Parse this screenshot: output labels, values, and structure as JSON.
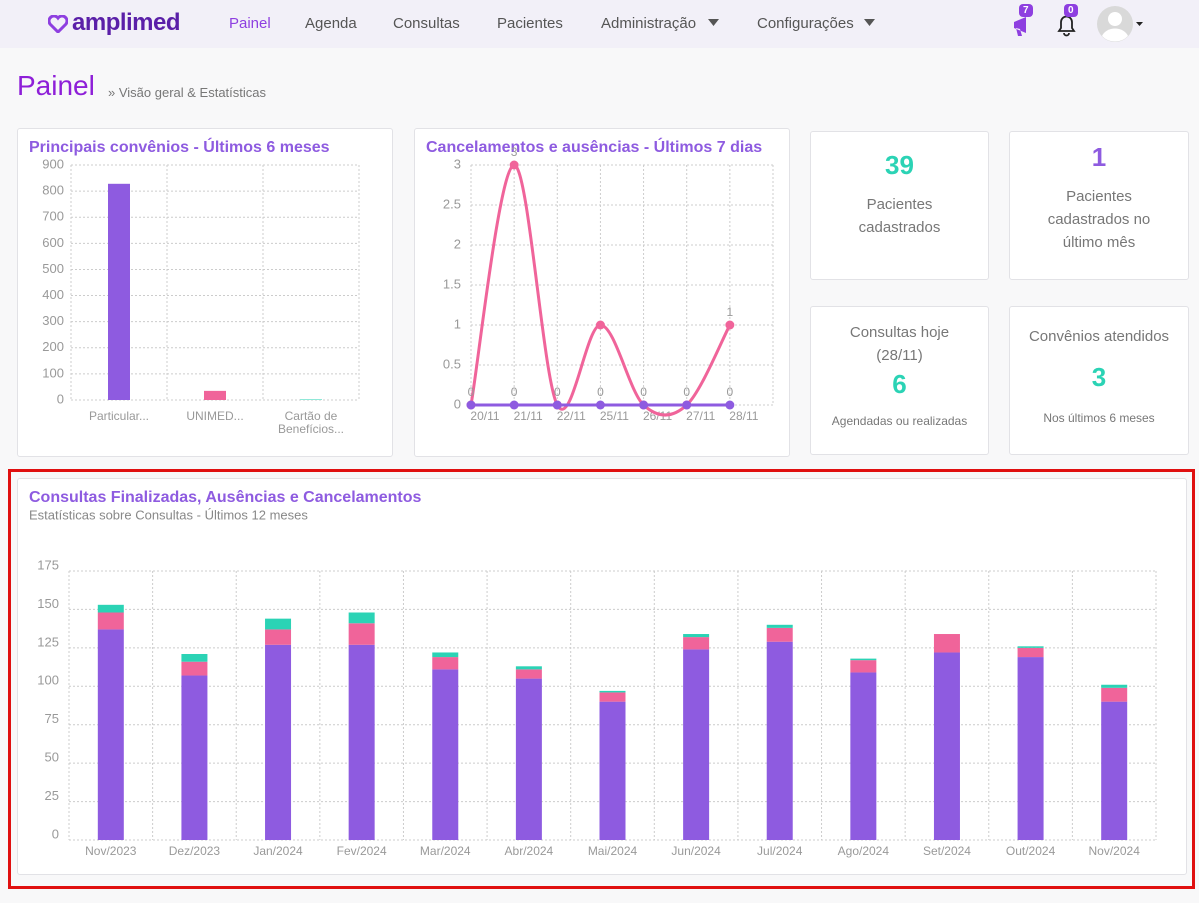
{
  "nav": {
    "logo": "amplimed",
    "items": [
      "Painel",
      "Agenda",
      "Consultas",
      "Pacientes",
      "Administração",
      "Configurações"
    ],
    "notifications_badge": "7",
    "alerts_badge": "0"
  },
  "header": {
    "title": "Painel",
    "subtitle": "» Visão geral & Estatísticas"
  },
  "stats": [
    {
      "value": "39",
      "label": "Pacientes cadastrados"
    },
    {
      "value": "1",
      "label": "Pacientes cadastrados no último mês"
    },
    {
      "title": "Consultas hoje (28/11)",
      "value": "6",
      "note": "Agendadas ou realizadas"
    },
    {
      "title": "Convênios atendidos",
      "value": "3",
      "note": "Nos últimos 6 meses"
    }
  ],
  "chart_data": [
    {
      "type": "bar",
      "title": "Principais convênios - Últimos 6 meses",
      "categories": [
        "Particular...",
        "UNIMED...",
        "Cartão de Benefícios..."
      ],
      "values": [
        828,
        35,
        2
      ],
      "colors": [
        "#8e5be0",
        "#f0649a",
        "#2bd3b5"
      ],
      "ylim": [
        0,
        900
      ],
      "yticks": [
        0,
        100,
        200,
        300,
        400,
        500,
        600,
        700,
        800,
        900
      ],
      "grid": true
    },
    {
      "type": "line",
      "title": "Cancelamentos e ausências - Últimos 7 dias",
      "categories": [
        "20/11",
        "21/11",
        "22/11",
        "25/11",
        "26/11",
        "27/11",
        "28/11"
      ],
      "series": [
        {
          "color": "#f0649a",
          "values": [
            0,
            3,
            0,
            1,
            0,
            0,
            1
          ],
          "value_labels": [
            null,
            "3",
            null,
            null,
            null,
            null,
            "1"
          ]
        },
        {
          "color": "#8e5be0",
          "values": [
            0,
            0,
            0,
            0,
            0,
            0,
            0
          ],
          "value_labels": [
            "0",
            "0",
            "0",
            "0",
            "0",
            "0",
            "0"
          ]
        }
      ],
      "ylim": [
        0,
        3
      ],
      "yticks": [
        0,
        0.5,
        1,
        1.5,
        2,
        2.5,
        3
      ],
      "grid": true
    },
    {
      "type": "stacked_bar",
      "title": "Consultas Finalizadas, Ausências e Cancelamentos",
      "subtitle": "Estatísticas sobre Consultas - Últimos 12 meses",
      "categories": [
        "Nov/2023",
        "Dez/2023",
        "Jan/2024",
        "Fev/2024",
        "Mar/2024",
        "Abr/2024",
        "Mai/2024",
        "Jun/2024",
        "Jul/2024",
        "Ago/2024",
        "Set/2024",
        "Out/2024",
        "Nov/2024"
      ],
      "series": [
        {
          "color": "#8e5be0",
          "values": [
            137,
            107,
            127,
            127,
            111,
            105,
            90,
            124,
            129,
            109,
            122,
            119,
            90
          ]
        },
        {
          "color": "#f0649a",
          "values": [
            11,
            9,
            10,
            14,
            8,
            6,
            6,
            8,
            9,
            8,
            12,
            6,
            9
          ]
        },
        {
          "color": "#2bd3b5",
          "values": [
            5,
            5,
            7,
            7,
            3,
            2,
            1,
            2,
            2,
            1,
            0,
            1,
            2
          ]
        }
      ],
      "ylim": [
        0,
        175
      ],
      "yticks": [
        0,
        25,
        50,
        75,
        100,
        125,
        150,
        175
      ],
      "grid": true
    }
  ]
}
